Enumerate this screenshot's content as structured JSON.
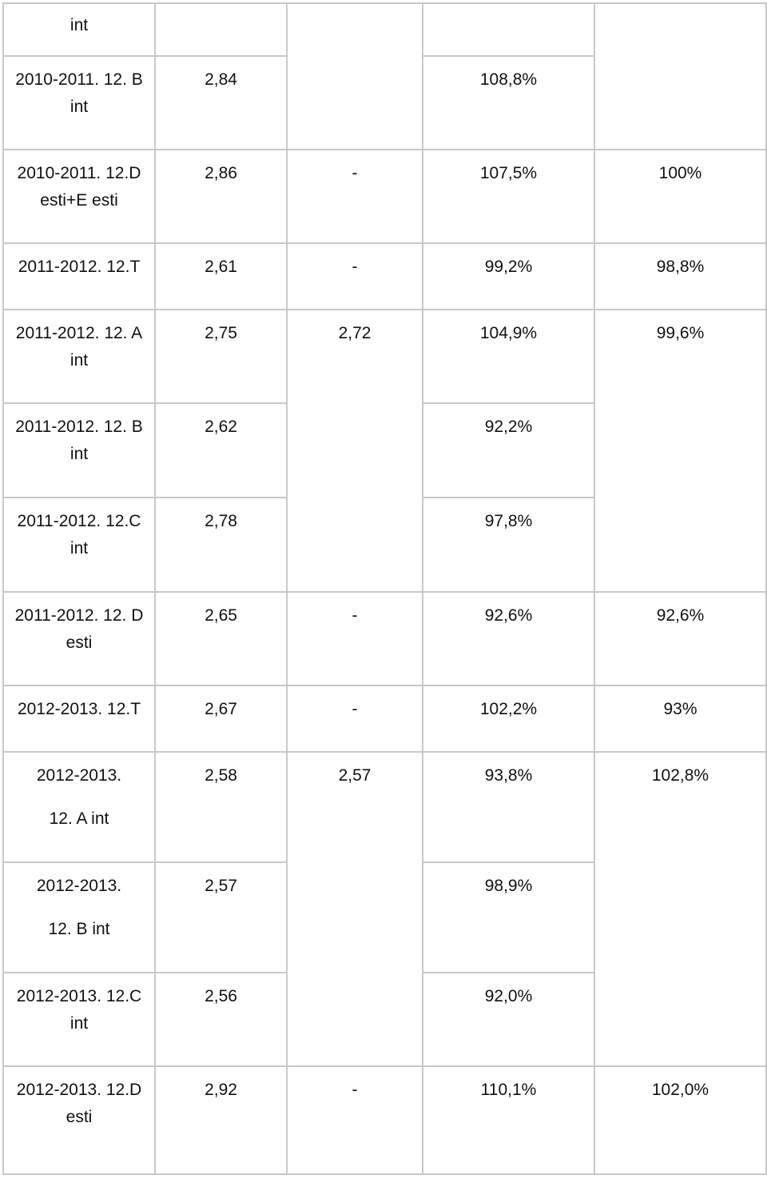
{
  "table": {
    "first_row_label": "int",
    "rows": [
      {
        "label": "2010-2011. 12. B int",
        "l1": "2010-2011. 12. B",
        "l2": "int",
        "avg": "2,84",
        "group": "",
        "pct": "108,8%",
        "cmp": ""
      },
      {
        "label": "2010-2011. 12.D esti+E esti",
        "l1": "2010-2011. 12.D",
        "l2": "esti+E esti",
        "avg": "2,86",
        "group": "-",
        "pct": "107,5%",
        "cmp": "100%"
      },
      {
        "label": "2011-2012. 12.T",
        "l1": "2011-2012. 12.T",
        "l2": "",
        "avg": "2,61",
        "group": "-",
        "pct": "99,2%",
        "cmp": "98,8%"
      },
      {
        "label": "2011-2012. 12. A int",
        "l1": "2011-2012. 12. A",
        "l2": "int",
        "avg": "2,75",
        "group": "2,72",
        "pct": "104,9%",
        "cmp": "99,6%"
      },
      {
        "label": "2011-2012. 12. B int",
        "l1": "2011-2012. 12. B",
        "l2": "int",
        "avg": "2,62",
        "group": "",
        "pct": "92,2%",
        "cmp": ""
      },
      {
        "label": "2011-2012. 12.C int",
        "l1": "2011-2012. 12.C",
        "l2": "int",
        "avg": "2,78",
        "group": "",
        "pct": "97,8%",
        "cmp": ""
      },
      {
        "label": "2011-2012. 12. D esti",
        "l1": "2011-2012. 12. D",
        "l2": "esti",
        "avg": "2,65",
        "group": "-",
        "pct": "92,6%",
        "cmp": "92,6%"
      },
      {
        "label": "2012-2013. 12.T",
        "l1": "2012-2013. 12.T",
        "l2": "",
        "avg": "2,67",
        "group": "-",
        "pct": "102,2%",
        "cmp": "93%"
      },
      {
        "label": "2012-2013. 12. A int",
        "l1": "2012-2013.",
        "l2": "12. A int",
        "avg": "2,58",
        "group": "2,57",
        "pct": "93,8%",
        "cmp": "102,8%"
      },
      {
        "label": "2012-2013. 12. B int",
        "l1": "2012-2013.",
        "l2": "12. B int",
        "avg": "2,57",
        "group": "",
        "pct": "98,9%",
        "cmp": ""
      },
      {
        "label": "2012-2013. 12.C int",
        "l1": "2012-2013. 12.C",
        "l2": "int",
        "avg": "2,56",
        "group": "",
        "pct": "92,0%",
        "cmp": ""
      },
      {
        "label": "2012-2013. 12.D esti",
        "l1": "2012-2013. 12.D",
        "l2": "esti",
        "avg": "2,92",
        "group": "-",
        "pct": "110,1%",
        "cmp": "102,0%"
      }
    ]
  }
}
